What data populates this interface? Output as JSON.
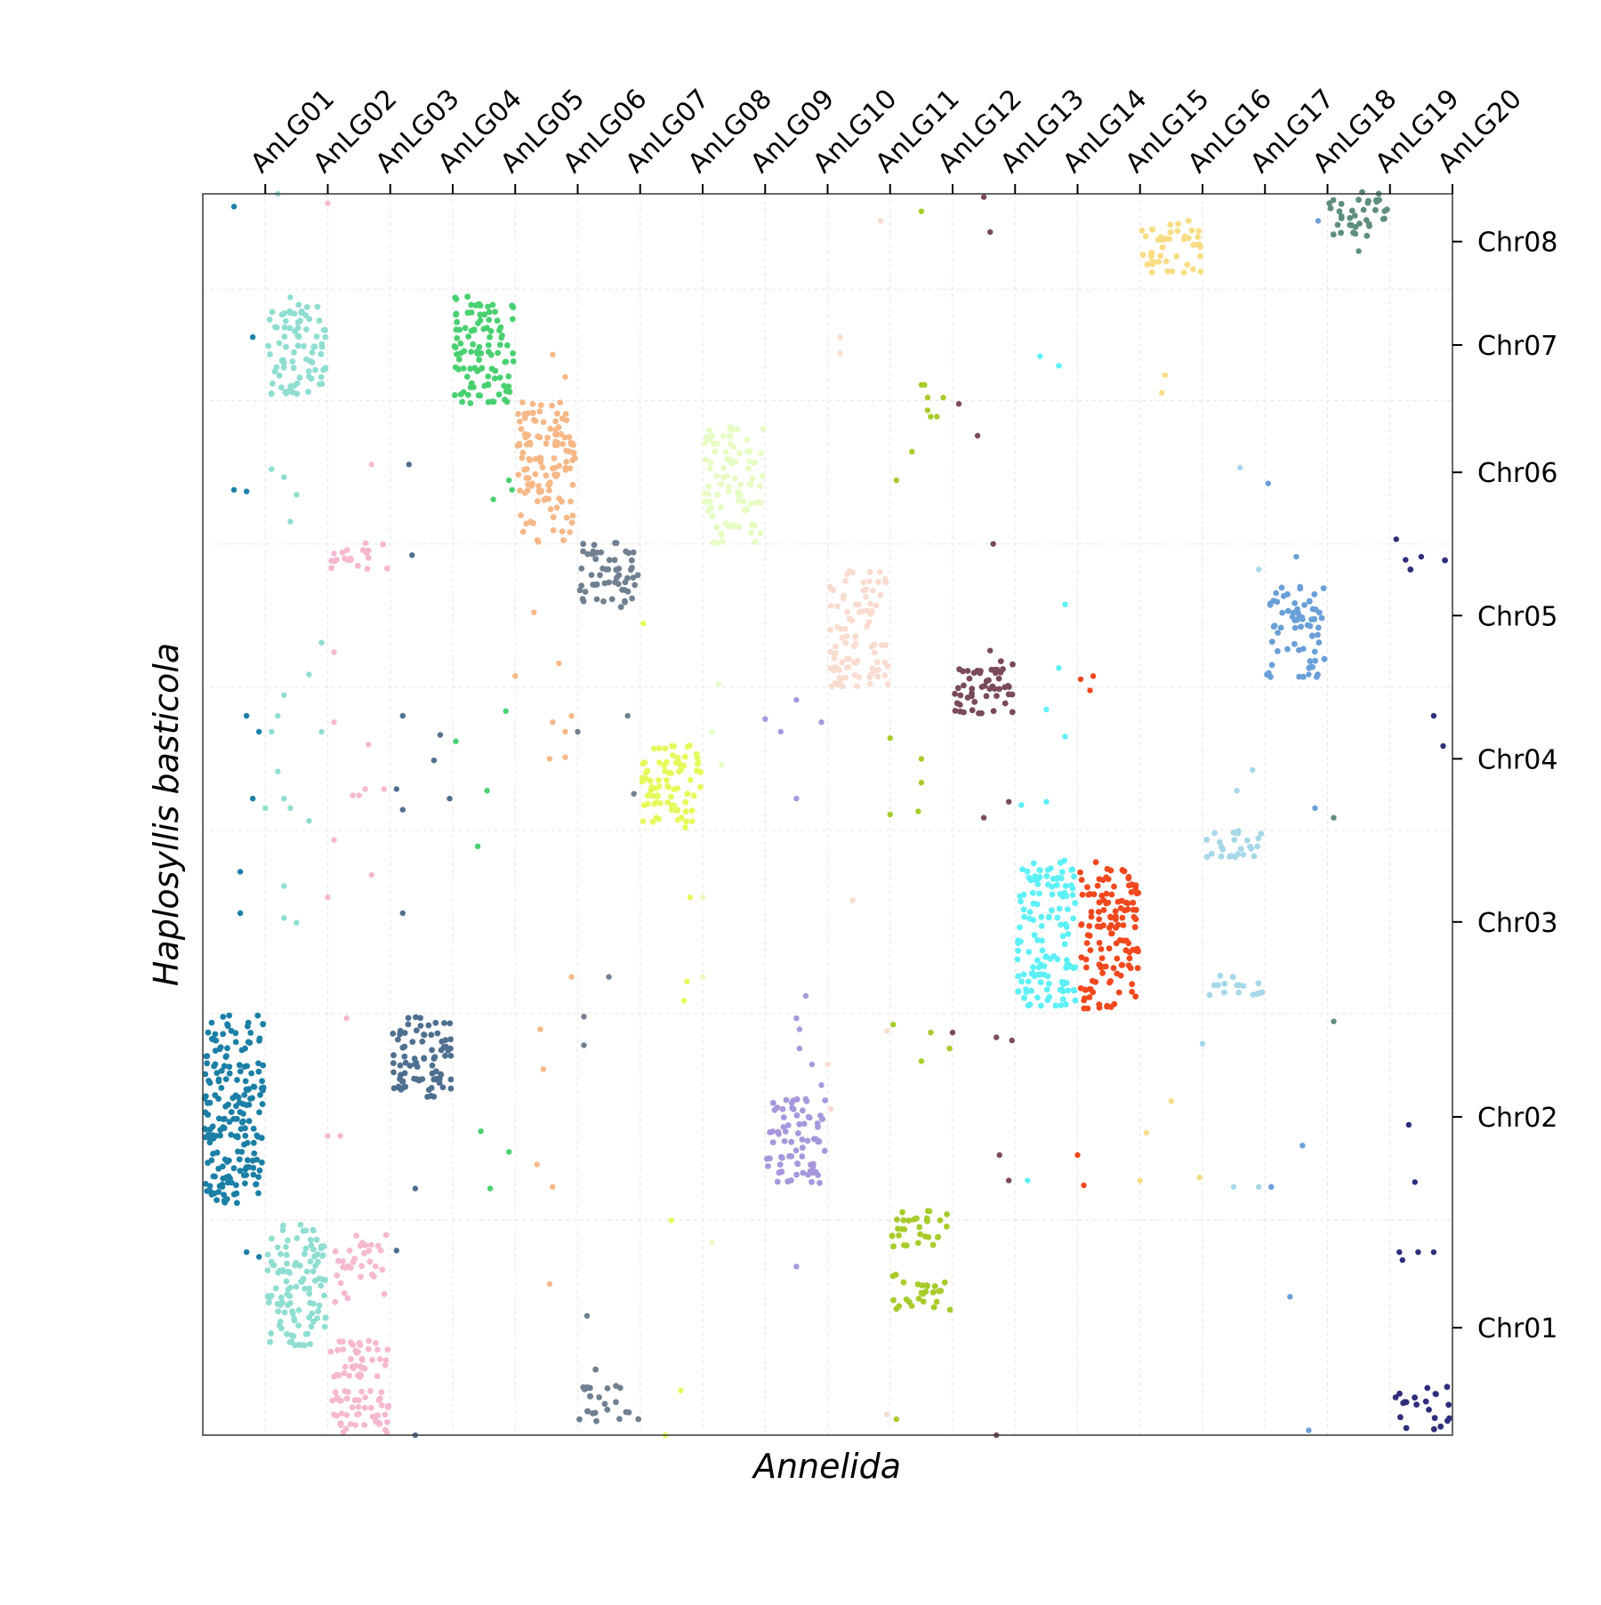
{
  "chart_data": {
    "type": "scatter",
    "title": "",
    "xlabel": "Annelida",
    "ylabel": "Haplosyllis basticola",
    "x_axis_position": "top",
    "y_axis_position": "right",
    "grid": true,
    "x_categories": [
      "AnLG01",
      "AnLG02",
      "AnLG03",
      "AnLG04",
      "AnLG05",
      "AnLG06",
      "AnLG07",
      "AnLG08",
      "AnLG09",
      "AnLG10",
      "AnLG11",
      "AnLG12",
      "AnLG13",
      "AnLG14",
      "AnLG15",
      "AnLG16",
      "AnLG17",
      "AnLG18",
      "AnLG19",
      "AnLG20"
    ],
    "y_categories": [
      "Chr01",
      "Chr02",
      "Chr03",
      "Chr04",
      "Chr05",
      "Chr06",
      "Chr07",
      "Chr08"
    ],
    "y_extents": [
      [
        0,
        1.35
      ],
      [
        1.35,
        2.65
      ],
      [
        2.65,
        3.8
      ],
      [
        3.8,
        4.7
      ],
      [
        4.7,
        5.6
      ],
      [
        5.6,
        6.5
      ],
      [
        6.5,
        7.2
      ],
      [
        7.2,
        7.8
      ]
    ],
    "blocks": [
      {
        "x": 1,
        "y0": 1.45,
        "y1": 2.63,
        "density": 1.0,
        "color": "#1b7fa6"
      },
      {
        "x": 2,
        "y0": 0.55,
        "y1": 1.33,
        "density": 0.9,
        "color": "#8fded1"
      },
      {
        "x": 2,
        "y0": 6.52,
        "y1": 7.1,
        "density": 0.9,
        "color": "#8fded1"
      },
      {
        "x": 3,
        "y0": 0.02,
        "y1": 0.58,
        "density": 1.0,
        "color": "#f6b8d0"
      },
      {
        "x": 3,
        "y0": 0.85,
        "y1": 1.25,
        "density": 0.5,
        "color": "#f6b8d0"
      },
      {
        "x": 3,
        "y0": 5.45,
        "y1": 5.6,
        "density": 0.8,
        "color": "#f6b8d0"
      },
      {
        "x": 4,
        "y0": 2.12,
        "y1": 2.63,
        "density": 1.0,
        "color": "#4f6f8f"
      },
      {
        "x": 5,
        "y0": 6.5,
        "y1": 7.15,
        "density": 1.0,
        "color": "#49d070"
      },
      {
        "x": 6,
        "y0": 5.62,
        "y1": 6.48,
        "density": 0.9,
        "color": "#f7b888"
      },
      {
        "x": 7,
        "y0": 5.22,
        "y1": 5.6,
        "density": 0.9,
        "color": "#708090"
      },
      {
        "x": 7,
        "y0": 0.1,
        "y1": 0.4,
        "density": 0.5,
        "color": "#708090"
      },
      {
        "x": 8,
        "y0": 3.82,
        "y1": 4.32,
        "density": 1.0,
        "color": "#e6f95c"
      },
      {
        "x": 9,
        "y0": 5.62,
        "y1": 6.32,
        "density": 0.8,
        "color": "#e6fcc4"
      },
      {
        "x": 10,
        "y0": 1.6,
        "y1": 2.1,
        "density": 0.9,
        "color": "#a797dc"
      },
      {
        "x": 11,
        "y0": 4.7,
        "y1": 5.42,
        "density": 0.8,
        "color": "#f9dcd0"
      },
      {
        "x": 12,
        "y0": 1.2,
        "y1": 1.4,
        "density": 0.9,
        "color": "#a7cc2a"
      },
      {
        "x": 12,
        "y0": 0.8,
        "y1": 1.0,
        "density": 0.8,
        "color": "#a7cc2a"
      },
      {
        "x": 13,
        "y0": 4.52,
        "y1": 4.85,
        "density": 1.0,
        "color": "#7a4a5c"
      },
      {
        "x": 14,
        "y0": 2.68,
        "y1": 3.6,
        "density": 0.9,
        "color": "#5ef0f7"
      },
      {
        "x": 15,
        "y0": 2.68,
        "y1": 3.6,
        "density": 0.9,
        "color": "#f2481d"
      },
      {
        "x": 16,
        "y0": 7.3,
        "y1": 7.62,
        "density": 0.9,
        "color": "#f9dd85"
      },
      {
        "x": 17,
        "y0": 2.75,
        "y1": 2.88,
        "density": 0.8,
        "color": "#a6d8e8"
      },
      {
        "x": 17,
        "y0": 3.6,
        "y1": 3.79,
        "density": 0.8,
        "color": "#a6d8e8"
      },
      {
        "x": 18,
        "y0": 4.75,
        "y1": 5.33,
        "density": 0.7,
        "color": "#6a9fd8"
      },
      {
        "x": 19,
        "y0": 7.55,
        "y1": 7.8,
        "density": 0.9,
        "color": "#5f8e7e"
      },
      {
        "x": 20,
        "y0": 0.05,
        "y1": 0.3,
        "density": 0.5,
        "color": "#2e2e7c"
      },
      {
        "x": 20,
        "y0": 5.46,
        "y1": 5.5,
        "density": 0.3,
        "color": "#2e2e7c"
      }
    ],
    "scattered_points": [
      [
        1.0,
        7.72
      ],
      [
        1.7,
        7.8
      ],
      [
        1.9,
        7.15
      ],
      [
        1.3,
        6.9
      ],
      [
        1.0,
        5.94
      ],
      [
        1.2,
        5.93
      ],
      [
        1.6,
        6.07
      ],
      [
        1.8,
        6.02
      ],
      [
        2.0,
        5.91
      ],
      [
        1.9,
        5.74
      ],
      [
        1.2,
        4.52
      ],
      [
        2.2,
        4.78
      ],
      [
        1.8,
        4.65
      ],
      [
        1.4,
        4.42
      ],
      [
        1.7,
        4.52
      ],
      [
        1.6,
        4.42
      ],
      [
        1.3,
        4.0
      ],
      [
        1.8,
        4.0
      ],
      [
        1.7,
        4.17
      ],
      [
        1.5,
        3.94
      ],
      [
        1.9,
        3.94
      ],
      [
        1.1,
        3.28
      ],
      [
        1.8,
        3.45
      ],
      [
        1.1,
        3.54
      ],
      [
        2.0,
        3.22
      ],
      [
        1.8,
        3.25
      ],
      [
        1.2,
        1.15
      ],
      [
        1.7,
        1.18
      ],
      [
        1.4,
        1.12
      ],
      [
        2.5,
        7.74
      ],
      [
        2.6,
        5.54
      ],
      [
        2.6,
        4.92
      ],
      [
        2.4,
        4.98
      ],
      [
        2.6,
        4.48
      ],
      [
        2.4,
        4.42
      ],
      [
        2.2,
        3.86
      ],
      [
        2.6,
        3.74
      ],
      [
        2.5,
        3.38
      ],
      [
        2.5,
        1.88
      ],
      [
        2.7,
        1.88
      ],
      [
        3.1,
        4.06
      ],
      [
        3.2,
        6.1
      ],
      [
        3.15,
        4.34
      ],
      [
        3.0,
        4.02
      ],
      [
        2.9,
        4.02
      ],
      [
        3.2,
        3.52
      ],
      [
        2.8,
        2.62
      ],
      [
        3.8,
        6.1
      ],
      [
        3.85,
        5.53
      ],
      [
        3.7,
        4.52
      ],
      [
        3.6,
        4.06
      ],
      [
        3.7,
        3.28
      ],
      [
        3.4,
        4.06
      ],
      [
        3.7,
        3.93
      ],
      [
        3.9,
        1.55
      ],
      [
        3.6,
        1.16
      ],
      [
        3.9,
        0.0
      ],
      [
        4.3,
        4.4
      ],
      [
        4.2,
        4.24
      ],
      [
        4.45,
        4.0
      ],
      [
        4.55,
        4.36
      ],
      [
        4.9,
        3.7
      ],
      [
        4.95,
        1.91
      ],
      [
        5.1,
        1.55
      ],
      [
        5.4,
        1.78
      ],
      [
        5.4,
        6.0
      ],
      [
        5.45,
        5.94
      ],
      [
        5.15,
        5.88
      ],
      [
        5.5,
        4.77
      ],
      [
        5.35,
        4.55
      ],
      [
        5.05,
        4.05
      ],
      [
        5.8,
        5.17
      ],
      [
        6.2,
        4.85
      ],
      [
        6.1,
        6.79
      ],
      [
        6.3,
        6.65
      ],
      [
        6.1,
        4.48
      ],
      [
        6.3,
        4.42
      ],
      [
        6.3,
        4.26
      ],
      [
        6.05,
        4.25
      ],
      [
        5.9,
        2.55
      ],
      [
        5.95,
        2.3
      ],
      [
        5.85,
        1.7
      ],
      [
        6.1,
        1.56
      ],
      [
        6.05,
        0.95
      ],
      [
        6.5,
        4.42
      ],
      [
        6.4,
        4.52
      ],
      [
        6.6,
        2.63
      ],
      [
        6.6,
        2.45
      ],
      [
        7.0,
        2.88
      ],
      [
        6.65,
        0.75
      ],
      [
        6.4,
        2.88
      ],
      [
        7.55,
        5.1
      ],
      [
        7.3,
        4.52
      ],
      [
        7.4,
        4.03
      ],
      [
        8.0,
        1.35
      ],
      [
        8.15,
        0.28
      ],
      [
        7.9,
        0.0
      ],
      [
        8.2,
        2.73
      ],
      [
        8.1,
        3.93
      ],
      [
        8.3,
        3.38
      ],
      [
        8.5,
        3.38
      ],
      [
        8.25,
        2.85
      ],
      [
        8.65,
        1.21
      ],
      [
        8.5,
        2.88
      ],
      [
        8.8,
        4.21
      ],
      [
        8.65,
        4.42
      ],
      [
        8.75,
        4.72
      ],
      [
        9.5,
        4.5
      ],
      [
        9.75,
        4.42
      ],
      [
        10.0,
        4.62
      ],
      [
        10.0,
        4.0
      ],
      [
        10.0,
        2.62
      ],
      [
        10.05,
        2.55
      ],
      [
        10.05,
        2.43
      ],
      [
        10.15,
        2.76
      ],
      [
        10.25,
        2.33
      ],
      [
        10.5,
        2.33
      ],
      [
        10.55,
        2.05
      ],
      [
        10.4,
        2.2
      ],
      [
        10.0,
        1.06
      ],
      [
        10.4,
        4.48
      ],
      [
        10.9,
        3.36
      ],
      [
        10.7,
        6.9
      ],
      [
        10.7,
        6.8
      ],
      [
        10.9,
        5.42
      ],
      [
        11.35,
        7.63
      ],
      [
        11.5,
        4.38
      ],
      [
        11.6,
        6.0
      ],
      [
        11.85,
        6.18
      ],
      [
        11.5,
        3.9
      ],
      [
        11.55,
        2.58
      ],
      [
        11.45,
        2.54
      ],
      [
        11.6,
        0.1
      ],
      [
        11.45,
        0.13
      ],
      [
        12.0,
        7.69
      ],
      [
        12.05,
        6.6
      ],
      [
        12.15,
        6.4
      ],
      [
        12.25,
        6.4
      ],
      [
        12.0,
        6.6
      ],
      [
        12.1,
        6.52
      ],
      [
        12.35,
        6.52
      ],
      [
        12.0,
        4.25
      ],
      [
        12.0,
        4.1
      ],
      [
        12.1,
        6.44
      ],
      [
        11.95,
        3.92
      ],
      [
        12.15,
        2.53
      ],
      [
        12.0,
        2.35
      ],
      [
        12.5,
        2.53
      ],
      [
        12.45,
        2.43
      ],
      [
        12.6,
        6.48
      ],
      [
        13.0,
        7.78
      ],
      [
        12.9,
        6.28
      ],
      [
        13.1,
        4.93
      ],
      [
        13.1,
        7.56
      ],
      [
        13.15,
        5.6
      ],
      [
        13.0,
        3.88
      ],
      [
        13.2,
        2.5
      ],
      [
        13.25,
        1.76
      ],
      [
        13.45,
        2.48
      ],
      [
        13.4,
        1.6
      ],
      [
        13.7,
        1.6
      ],
      [
        13.2,
        0.0
      ],
      [
        13.6,
        3.96
      ],
      [
        13.4,
        3.98
      ],
      [
        13.9,
        6.78
      ],
      [
        14.3,
        5.22
      ],
      [
        14.2,
        4.82
      ],
      [
        14.55,
        4.75
      ],
      [
        14.75,
        4.77
      ],
      [
        14.0,
        4.56
      ],
      [
        14.3,
        4.39
      ],
      [
        14.2,
        6.72
      ],
      [
        14.0,
        3.98
      ],
      [
        14.5,
        1.76
      ],
      [
        14.6,
        1.57
      ],
      [
        14.7,
        4.68
      ],
      [
        15.9,
        6.66
      ],
      [
        15.85,
        6.55
      ],
      [
        15.6,
        1.9
      ],
      [
        15.5,
        1.6
      ],
      [
        16.45,
        1.62
      ],
      [
        16.5,
        2.46
      ],
      [
        16.0,
        2.1
      ],
      [
        17.1,
        6.08
      ],
      [
        17.55,
        5.98
      ],
      [
        17.4,
        5.44
      ],
      [
        17.3,
        4.18
      ],
      [
        17.05,
        4.05
      ],
      [
        17.0,
        1.56
      ],
      [
        17.4,
        1.56
      ],
      [
        17.6,
        1.56
      ],
      [
        18.0,
        5.52
      ],
      [
        18.2,
        4.78
      ],
      [
        18.3,
        3.94
      ],
      [
        18.6,
        3.88
      ],
      [
        18.1,
        1.82
      ],
      [
        17.9,
        0.87
      ],
      [
        18.2,
        0.03
      ],
      [
        18.35,
        7.63
      ],
      [
        18.6,
        2.6
      ],
      [
        19.0,
        7.44
      ],
      [
        19.6,
        5.63
      ],
      [
        19.75,
        5.5
      ],
      [
        20.0,
        5.52
      ],
      [
        20.2,
        4.52
      ],
      [
        20.35,
        4.33
      ],
      [
        19.8,
        1.95
      ],
      [
        19.9,
        1.59
      ],
      [
        19.65,
        1.15
      ],
      [
        19.7,
        1.1
      ],
      [
        19.95,
        1.15
      ],
      [
        20.2,
        1.15
      ]
    ]
  }
}
